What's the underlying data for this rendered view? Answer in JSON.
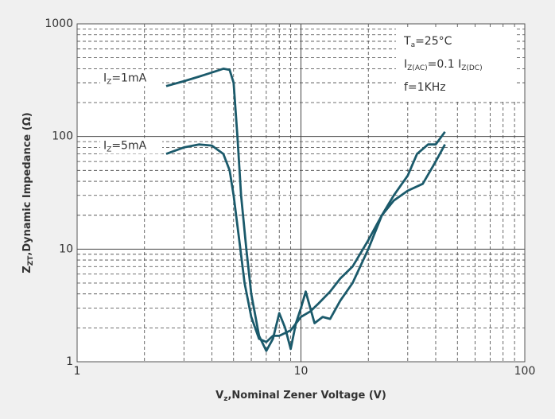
{
  "chart_data": {
    "type": "line",
    "xscale": "log",
    "yscale": "log",
    "grid": true,
    "minor_grid": true,
    "xlabel": [
      {
        "text": "V"
      },
      {
        "text": "z",
        "sub": true
      },
      {
        "text": ",Nominal Zener Voltage (V)"
      }
    ],
    "ylabel": [
      {
        "text": "Z"
      },
      {
        "text": "ZT",
        "sub": true
      },
      {
        "text": ",Dynamic Impedance (Ω)"
      }
    ],
    "xlim": [
      1,
      100
    ],
    "xticks": [
      1,
      10,
      100
    ],
    "ylim": [
      1,
      1000
    ],
    "yticks": [
      1,
      10,
      100,
      1000
    ],
    "conditions": [
      [
        {
          "text": "T"
        },
        {
          "text": "a",
          "sub": true
        },
        {
          "text": "=25°C"
        }
      ],
      [
        {
          "text": "I"
        },
        {
          "text": "Z(AC)",
          "sub": true
        },
        {
          "text": "=0.1 I"
        },
        {
          "text": "Z(DC)",
          "sub": true
        }
      ],
      [
        {
          "text": "f=1KHz"
        }
      ]
    ],
    "series": [
      {
        "label": [
          {
            "text": "I"
          },
          {
            "text": "Z",
            "sub": true
          },
          {
            "text": "=1mA"
          }
        ],
        "color": "#1b5a6b",
        "x": [
          2.5,
          3,
          3.5,
          4,
          4.5,
          4.8,
          5,
          5.2,
          5.4,
          5.7,
          6,
          6.5,
          7,
          7.5,
          8,
          8.5,
          9,
          9.5,
          10,
          10.5,
          11,
          11.5,
          12.5,
          13.5,
          15,
          17,
          20,
          23,
          26,
          30,
          33,
          37,
          40,
          44
        ],
        "values": [
          280,
          310,
          340,
          370,
          400,
          390,
          300,
          100,
          30,
          10,
          4,
          1.7,
          1.25,
          1.6,
          2.7,
          2,
          1.3,
          2.2,
          3,
          4.2,
          3,
          2.2,
          2.5,
          2.4,
          3.5,
          5,
          10,
          20,
          30,
          45,
          70,
          85,
          85,
          110
        ]
      },
      {
        "label": [
          {
            "text": "I"
          },
          {
            "text": "Z",
            "sub": true
          },
          {
            "text": "=5mA"
          }
        ],
        "color": "#1b5a6b",
        "x": [
          2.5,
          3,
          3.5,
          4,
          4.5,
          4.8,
          5,
          5.3,
          5.6,
          6,
          6.5,
          7,
          7.5,
          8,
          9,
          10,
          11,
          12,
          13.5,
          15,
          17,
          20,
          23,
          26,
          30,
          35,
          40,
          44
        ],
        "values": [
          70,
          80,
          85,
          83,
          70,
          50,
          30,
          12,
          5,
          2.5,
          1.6,
          1.5,
          1.7,
          1.7,
          1.9,
          2.5,
          2.8,
          3.3,
          4.2,
          5.5,
          7,
          12,
          20,
          27,
          33,
          38,
          60,
          85
        ]
      }
    ]
  }
}
